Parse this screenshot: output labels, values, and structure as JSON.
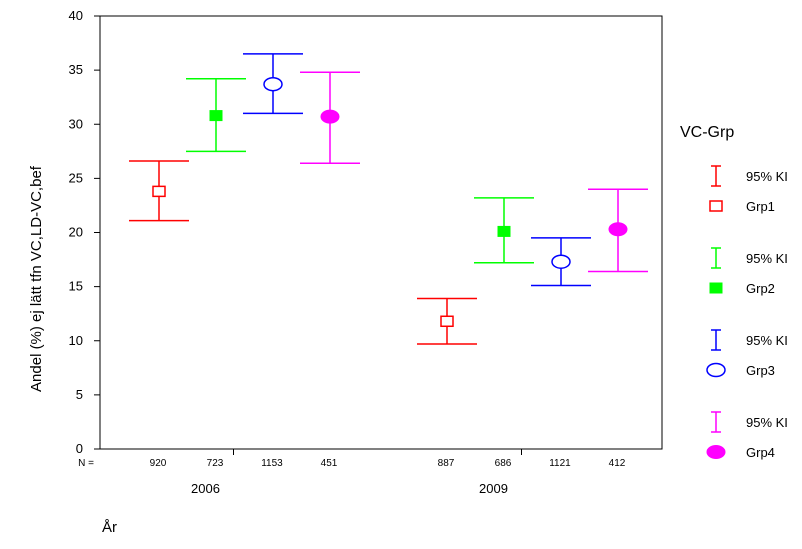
{
  "chart_data": {
    "type": "errorbar",
    "ylabel": "Andel (%) ej lätt tfn VC,LD-VC,bef",
    "xlabel": "År",
    "ylim": [
      0,
      40
    ],
    "yticks": [
      0,
      5,
      10,
      15,
      20,
      25,
      30,
      35,
      40
    ],
    "n_prefix": "N =",
    "categories": [
      "2006",
      "2009"
    ],
    "legend": {
      "title": "VC-Grp",
      "placement": "right",
      "ci_label": "95% KI"
    },
    "series": [
      {
        "name": "Grp1",
        "color": "#ff0000",
        "marker": "open-square",
        "points": [
          {
            "year": "2006",
            "n": "920",
            "mean": 23.8,
            "ci_low": 21.1,
            "ci_high": 26.6
          },
          {
            "year": "2009",
            "n": "887",
            "mean": 11.8,
            "ci_low": 9.7,
            "ci_high": 13.9
          }
        ]
      },
      {
        "name": "Grp2",
        "color": "#00ff00",
        "marker": "filled-square",
        "points": [
          {
            "year": "2006",
            "n": "723",
            "mean": 30.8,
            "ci_low": 27.5,
            "ci_high": 34.2
          },
          {
            "year": "2009",
            "n": "686",
            "mean": 20.1,
            "ci_low": 17.2,
            "ci_high": 23.2
          }
        ]
      },
      {
        "name": "Grp3",
        "color": "#0000ff",
        "marker": "open-circle",
        "points": [
          {
            "year": "2006",
            "n": "1153",
            "mean": 33.7,
            "ci_low": 31.0,
            "ci_high": 36.5
          },
          {
            "year": "2009",
            "n": "1121",
            "mean": 17.3,
            "ci_low": 15.1,
            "ci_high": 19.5
          }
        ]
      },
      {
        "name": "Grp4",
        "color": "#ff00ff",
        "marker": "filled-circle",
        "points": [
          {
            "year": "2006",
            "n": "451",
            "mean": 30.7,
            "ci_low": 26.4,
            "ci_high": 34.8
          },
          {
            "year": "2009",
            "n": "412",
            "mean": 20.3,
            "ci_low": 16.4,
            "ci_high": 24.0
          }
        ]
      }
    ]
  }
}
